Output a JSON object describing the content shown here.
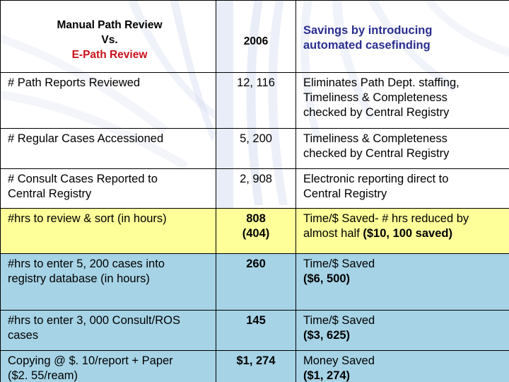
{
  "table": {
    "header": {
      "col1_line1": "Manual Path Review",
      "col1_line2": "Vs.",
      "col1_line3": "E-Path Review",
      "col2": "2006",
      "col3_line1": "Savings by introducing",
      "col3_line2": "automated casefinding"
    },
    "rows": [
      {
        "label_lines": [
          "# Path Reports Reviewed"
        ],
        "value_lines": [
          "12, 116"
        ],
        "note_lines": [
          "Eliminates Path Dept. staffing,",
          "Timeliness & Completeness",
          "checked by Central Registry"
        ],
        "highlight": "none"
      },
      {
        "label_lines": [
          "# Regular Cases Accessioned"
        ],
        "value_lines": [
          "5, 200"
        ],
        "note_lines": [
          "Timeliness & Completeness",
          "checked by Central Registry"
        ],
        "highlight": "none"
      },
      {
        "label_lines": [
          "# Consult Cases Reported to",
          "Central Registry"
        ],
        "value_lines": [
          "2, 908"
        ],
        "note_lines": [
          "Electronic reporting direct to",
          "Central Registry"
        ],
        "highlight": "none"
      },
      {
        "label_lines": [
          "#hrs to review & sort (in hours)"
        ],
        "value_lines": [
          "808",
          "(404)"
        ],
        "note_lines": [
          "Time/$ Saved- # hrs reduced by",
          "almost half ($10, 100 saved)"
        ],
        "highlight": "yellow"
      },
      {
        "label_lines": [
          "#hrs to enter 5, 200 cases into",
          "registry database (in hours)"
        ],
        "value_lines": [
          "260"
        ],
        "note_lines": [
          "Time/$ Saved",
          "($6, 500)"
        ],
        "highlight": "blue"
      },
      {
        "label_lines": [
          "#hrs to enter 3, 000 Consult/ROS",
          "cases"
        ],
        "value_lines": [
          "145"
        ],
        "note_lines": [
          "Time/$ Saved",
          "($3, 625)"
        ],
        "highlight": "blue"
      },
      {
        "label_lines": [
          "Copying @ $. 10/report + Paper",
          "($2. 55/ream)"
        ],
        "value_lines": [
          "$1, 274"
        ],
        "note_lines": [
          "Money Saved",
          "($1, 274)"
        ],
        "highlight": "blue"
      }
    ]
  },
  "colors": {
    "header_savings_text": "#2b2f8f",
    "header_red_text": "#c8101a",
    "yellow_row": "#ffff99",
    "blue_row": "#a6d3e6",
    "deco_blue": "#cfd9ee"
  }
}
